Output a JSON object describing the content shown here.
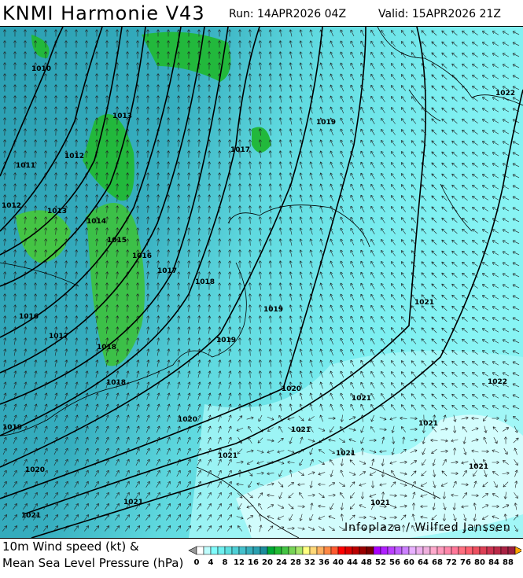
{
  "header": {
    "title": "KNMI Harmonie V43",
    "run": "Run: 14APR2026 04Z",
    "valid": "Valid: 15APR2026 21Z"
  },
  "map": {
    "isobar_labels": [
      "1010",
      "1013",
      "1017",
      "1011",
      "1012",
      "1012",
      "1013",
      "1014",
      "1015",
      "1016",
      "1017",
      "1018",
      "1016",
      "1017",
      "1018",
      "1019",
      "1019",
      "1019",
      "1018",
      "1020",
      "1021",
      "1021",
      "1022",
      "1022",
      "1020",
      "1019",
      "1021",
      "1021",
      "1021",
      "1021",
      "1021",
      "1020",
      "1021",
      "1021",
      "1021"
    ],
    "watermark": "Infoplaza / Wilfred Janssen"
  },
  "caption": {
    "line1": "10m Wind speed (kt) &",
    "line2": "Mean Sea Level Pressure (hPa)"
  },
  "legend": {
    "unit": "kt",
    "labels": [
      "0",
      "4",
      "8",
      "12",
      "16",
      "20",
      "24",
      "28",
      "32",
      "36",
      "40",
      "44",
      "48",
      "52",
      "56",
      "60",
      "64",
      "68",
      "72",
      "76",
      "80",
      "84",
      "88"
    ],
    "colors": [
      "#ffffff",
      "#bffcfc",
      "#80fcfc",
      "#6ff0f0",
      "#5cdfe0",
      "#4ecfd6",
      "#44c0cc",
      "#36aebc",
      "#2aa0b0",
      "#1c8c9c",
      "#00aa33",
      "#22bb33",
      "#44c444",
      "#77d455",
      "#a8e66a",
      "#ffff80",
      "#ffd877",
      "#ffb060",
      "#ff8844",
      "#ff5a30",
      "#ff0000",
      "#dd0000",
      "#bb0000",
      "#990000",
      "#770000",
      "#aa00ff",
      "#b020ff",
      "#bb40ff",
      "#c060ff",
      "#cc80ff",
      "#e8b0ff",
      "#eeb0ee",
      "#f0b0dd",
      "#ffaacc",
      "#ff99bb",
      "#ff88aa",
      "#ff7799",
      "#ff7080",
      "#ff6070",
      "#ee5060",
      "#dd4055",
      "#cc3350",
      "#bb2a48",
      "#aa2244",
      "#992040"
    ],
    "under_color": "#999999",
    "over_color": "#ffa500"
  }
}
